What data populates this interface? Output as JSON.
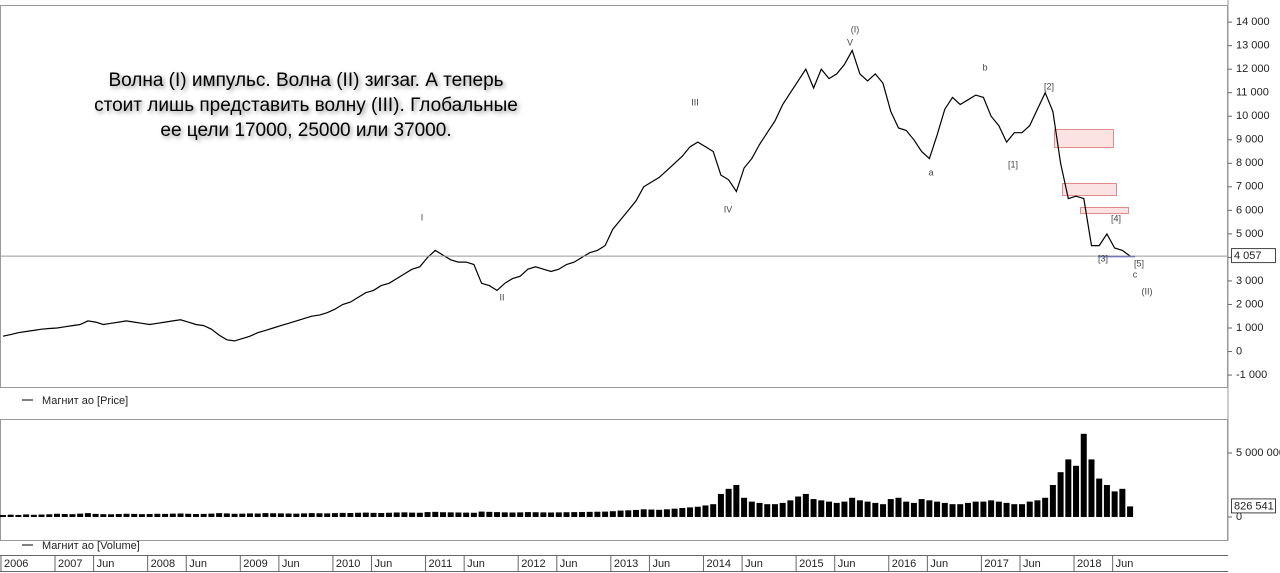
{
  "chart_data": [
    {
      "type": "line",
      "title_lines": [
        "Волна (I) импульс. Волна (II) зигзаг. А теперь",
        "стоит лишь представить волну (III). Глобальные",
        "ее цели 17000, 25000 или 37000."
      ],
      "wave_labels": [
        "(I)",
        "V",
        "III",
        "IV",
        "I",
        "II",
        "a",
        "b",
        "[1]",
        "[2]",
        "[3]",
        "[4]",
        "[5]",
        "c",
        "(II)"
      ],
      "ylim": [
        -1550,
        14600
      ],
      "yticks": [
        {
          "value": 14000,
          "label": "14 000"
        },
        {
          "value": 13000,
          "label": "13 000"
        },
        {
          "value": 12000,
          "label": "12 000"
        },
        {
          "value": 11000,
          "label": "11 000"
        },
        {
          "value": 10000,
          "label": "10 000"
        },
        {
          "value": 9000,
          "label": "9 000"
        },
        {
          "value": 8000,
          "label": "8 000"
        },
        {
          "value": 7000,
          "label": "7 000"
        },
        {
          "value": 6000,
          "label": "6 000"
        },
        {
          "value": 5000,
          "label": "5 000"
        },
        {
          "value": 4000,
          "label": "4 000"
        },
        {
          "value": 3000,
          "label": "3 000"
        },
        {
          "value": 2000,
          "label": "2 000"
        },
        {
          "value": 1000,
          "label": "1 000"
        },
        0,
        {
          "value": -1000,
          "label": "-1 000"
        }
      ],
      "series": [
        {
          "name": "Магнит ао [Price]",
          "color": "#000000",
          "values": [
            650,
            720,
            800,
            850,
            900,
            950,
            980,
            1000,
            1050,
            1100,
            1150,
            1300,
            1250,
            1150,
            1200,
            1250,
            1300,
            1250,
            1200,
            1150,
            1200,
            1250,
            1300,
            1350,
            1250,
            1150,
            1100,
            950,
            700,
            500,
            450,
            550,
            650,
            800,
            900,
            1000,
            1100,
            1200,
            1300,
            1400,
            1500,
            1550,
            1650,
            1800,
            2000,
            2100,
            2300,
            2500,
            2600,
            2800,
            2900,
            3100,
            3300,
            3500,
            3600,
            4000,
            4300,
            4100,
            3900,
            3800,
            3800,
            3700,
            2900,
            2800,
            2600,
            2900,
            3100,
            3200,
            3500,
            3600,
            3500,
            3400,
            3500,
            3700,
            3800,
            4000,
            4200,
            4300,
            4500,
            5200,
            5600,
            6000,
            6400,
            7000,
            7200,
            7400,
            7700,
            8000,
            8300,
            8700,
            8900,
            8700,
            8500,
            7500,
            7300,
            6800,
            7800,
            8200,
            8800,
            9300,
            9800,
            10500,
            11000,
            11500,
            12000,
            11200,
            12000,
            11600,
            11800,
            12200,
            12800,
            11800,
            11500,
            11800,
            11400,
            10200,
            9500,
            9400,
            9000,
            8500,
            8200,
            9200,
            10300,
            10800,
            10500,
            10700,
            10900,
            10800,
            10000,
            9600,
            8900,
            9300,
            9300,
            9600,
            10300,
            11000,
            10200,
            8000,
            6500,
            6600,
            6500,
            4500,
            4500,
            5000,
            4400,
            4300,
            4057
          ],
          "current": {
            "value": 4057,
            "label": "4 057"
          },
          "current_color": "#999999"
        }
      ]
    },
    {
      "type": "bar",
      "categories": [
        "2006",
        null,
        null,
        null,
        null,
        null,
        null,
        "2007",
        null,
        null,
        null,
        null,
        "Jun",
        null,
        null,
        null,
        null,
        null,
        null,
        "2008",
        null,
        null,
        null,
        null,
        "Jun",
        null,
        null,
        null,
        null,
        null,
        null,
        "2009",
        null,
        null,
        null,
        null,
        "Jun",
        null,
        null,
        null,
        null,
        null,
        null,
        "2010",
        null,
        null,
        null,
        null,
        "Jun",
        null,
        null,
        null,
        null,
        null,
        null,
        "2011",
        null,
        null,
        null,
        null,
        "Jun",
        null,
        null,
        null,
        null,
        null,
        null,
        "2012",
        null,
        null,
        null,
        null,
        "Jun",
        null,
        null,
        null,
        null,
        null,
        null,
        "2013",
        null,
        null,
        null,
        null,
        "Jun",
        null,
        null,
        null,
        null,
        null,
        null,
        "2014",
        null,
        null,
        null,
        null,
        "Jun",
        null,
        null,
        null,
        null,
        null,
        null,
        "2015",
        null,
        null,
        null,
        null,
        "Jun",
        null,
        null,
        null,
        null,
        null,
        null,
        "2016",
        null,
        null,
        null,
        null,
        "Jun",
        null,
        null,
        null,
        null,
        null,
        null,
        "2017",
        null,
        null,
        null,
        null,
        "Jun",
        null,
        null,
        null,
        null,
        null,
        null,
        "2018",
        null,
        null,
        null,
        null,
        "Jun",
        null,
        null
      ],
      "ylim": [
        -1800000,
        7580000
      ],
      "yticks": [
        {
          "value": 5000000,
          "label": "5 000 000"
        },
        0
      ],
      "series": [
        {
          "name": "Магнит ао [Volume]",
          "color": "#000000",
          "values": [
            150000,
            180000,
            160000,
            200000,
            170000,
            190000,
            210000,
            250000,
            230000,
            220000,
            260000,
            300000,
            240000,
            220000,
            210000,
            230000,
            250000,
            240000,
            220000,
            230000,
            250000,
            240000,
            260000,
            270000,
            250000,
            230000,
            240000,
            260000,
            300000,
            280000,
            250000,
            260000,
            280000,
            270000,
            300000,
            290000,
            280000,
            270000,
            260000,
            280000,
            300000,
            290000,
            280000,
            300000,
            320000,
            310000,
            330000,
            340000,
            320000,
            310000,
            330000,
            350000,
            360000,
            340000,
            330000,
            380000,
            400000,
            370000,
            360000,
            350000,
            340000,
            330000,
            420000,
            400000,
            380000,
            360000,
            350000,
            360000,
            380000,
            370000,
            360000,
            350000,
            360000,
            370000,
            380000,
            390000,
            400000,
            410000,
            420000,
            450000,
            500000,
            520000,
            550000,
            600000,
            580000,
            560000,
            600000,
            650000,
            700000,
            750000,
            800000,
            900000,
            1000000,
            1800000,
            2200000,
            2500000,
            1500000,
            1200000,
            1100000,
            1000000,
            1000000,
            1100000,
            1300000,
            1600000,
            1800000,
            1400000,
            1300000,
            1200000,
            1100000,
            1200000,
            1500000,
            1300000,
            1200000,
            1100000,
            1000000,
            1400000,
            1500000,
            1200000,
            1100000,
            1400000,
            1300000,
            1200000,
            1100000,
            1000000,
            1000000,
            1100000,
            1200000,
            1200000,
            1300000,
            1200000,
            1100000,
            1000000,
            1000000,
            1200000,
            1300000,
            1500000,
            2500000,
            3500000,
            4500000,
            4000000,
            6500000,
            4500000,
            3000000,
            2500000,
            2000000,
            2200000,
            826541
          ],
          "current": {
            "value": 826541,
            "label": "826 541"
          }
        }
      ]
    }
  ]
}
